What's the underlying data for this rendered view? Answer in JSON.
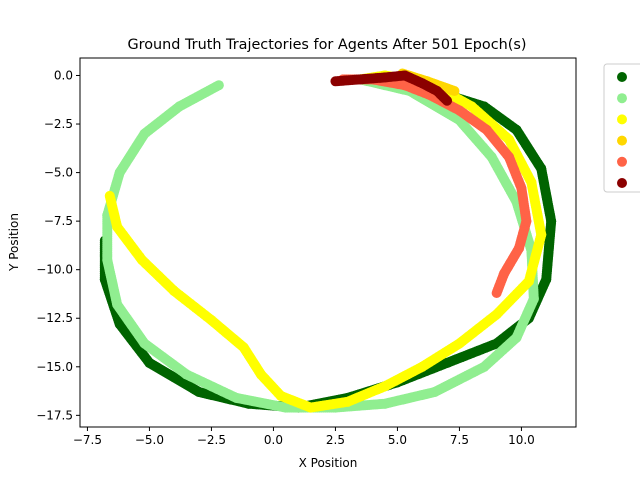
{
  "chart_data": {
    "type": "scatter",
    "title": "Ground Truth Trajectories for Agents After 501 Epoch(s)",
    "xlabel": "X Position",
    "ylabel": "Y Position",
    "xlim": [
      -7.8,
      12.2
    ],
    "ylim": [
      -18.1,
      0.9
    ],
    "xticks": [
      -7.5,
      -5.0,
      -2.5,
      0.0,
      2.5,
      5.0,
      7.5,
      10.0
    ],
    "xtick_labels": [
      "−7.5",
      "−5.0",
      "−2.5",
      "0.0",
      "2.5",
      "5.0",
      "7.5",
      "10.0"
    ],
    "yticks": [
      0.0,
      -2.5,
      -5.0,
      -7.5,
      -10.0,
      -12.5,
      -15.0,
      -17.5
    ],
    "ytick_labels": [
      "0.0",
      "−2.5",
      "−5.0",
      "−7.5",
      "−10.0",
      "−12.5",
      "−15.0",
      "−17.5"
    ],
    "grid": false,
    "legend_position": "outside-right",
    "series": [
      {
        "color": "#006400",
        "points": [
          [
            7.0,
            -1.0
          ],
          [
            8.5,
            -1.6
          ],
          [
            9.8,
            -2.8
          ],
          [
            10.8,
            -4.8
          ],
          [
            11.2,
            -7.5
          ],
          [
            11.0,
            -10.5
          ],
          [
            10.3,
            -12.5
          ],
          [
            9.0,
            -13.8
          ],
          [
            7.0,
            -14.8
          ],
          [
            5.0,
            -15.8
          ],
          [
            3.0,
            -16.6
          ],
          [
            1.0,
            -17.1
          ],
          [
            -1.0,
            -16.9
          ],
          [
            -3.0,
            -16.3
          ],
          [
            -5.0,
            -14.8
          ],
          [
            -6.2,
            -12.8
          ],
          [
            -6.8,
            -10.5
          ],
          [
            -6.8,
            -8.5
          ]
        ]
      },
      {
        "color": "#90EE90",
        "points": [
          [
            -2.2,
            -0.5
          ],
          [
            -3.8,
            -1.6
          ],
          [
            -5.2,
            -3.0
          ],
          [
            -6.2,
            -5.0
          ],
          [
            -6.7,
            -7.2
          ],
          [
            -6.7,
            -9.5
          ],
          [
            -6.3,
            -11.8
          ],
          [
            -5.2,
            -13.8
          ],
          [
            -3.5,
            -15.4
          ],
          [
            -1.5,
            -16.6
          ],
          [
            0.5,
            -17.1
          ],
          [
            2.5,
            -17.1
          ],
          [
            4.5,
            -16.9
          ],
          [
            6.5,
            -16.3
          ],
          [
            8.5,
            -15.0
          ],
          [
            9.8,
            -13.5
          ],
          [
            10.5,
            -11.5
          ],
          [
            10.4,
            -9.0
          ],
          [
            9.8,
            -6.5
          ],
          [
            8.8,
            -4.2
          ],
          [
            7.5,
            -2.3
          ],
          [
            5.5,
            -0.8
          ],
          [
            3.5,
            -0.2
          ]
        ]
      },
      {
        "color": "#FFFF00",
        "points": [
          [
            -6.6,
            -6.2
          ],
          [
            -6.3,
            -7.8
          ],
          [
            -5.3,
            -9.5
          ],
          [
            -4.0,
            -11.1
          ],
          [
            -2.5,
            -12.6
          ],
          [
            -1.2,
            -14.0
          ],
          [
            -0.5,
            -15.4
          ],
          [
            0.3,
            -16.5
          ],
          [
            1.5,
            -17.1
          ],
          [
            3.0,
            -16.8
          ],
          [
            4.5,
            -16.0
          ],
          [
            6.0,
            -15.0
          ],
          [
            7.5,
            -13.8
          ],
          [
            9.0,
            -12.3
          ],
          [
            10.3,
            -10.6
          ],
          [
            10.8,
            -8.2
          ],
          [
            10.4,
            -5.5
          ],
          [
            9.5,
            -3.3
          ],
          [
            8.0,
            -1.6
          ],
          [
            6.3,
            -0.4
          ],
          [
            4.5,
            0.0
          ],
          [
            3.5,
            -0.2
          ]
        ]
      },
      {
        "color": "#FFD700",
        "points": [
          [
            5.2,
            0.1
          ],
          [
            6.2,
            -0.3
          ],
          [
            7.3,
            -0.8
          ]
        ]
      },
      {
        "color": "#FF6347",
        "points": [
          [
            2.8,
            -0.2
          ],
          [
            4.0,
            -0.2
          ],
          [
            5.3,
            -0.5
          ],
          [
            6.3,
            -1.0
          ],
          [
            7.5,
            -1.8
          ],
          [
            8.6,
            -2.8
          ],
          [
            9.5,
            -4.2
          ],
          [
            10.0,
            -5.8
          ],
          [
            10.2,
            -7.5
          ],
          [
            9.9,
            -8.9
          ],
          [
            9.3,
            -10.2
          ],
          [
            9.0,
            -11.2
          ]
        ]
      },
      {
        "color": "#8B0000",
        "points": [
          [
            2.5,
            -0.3
          ],
          [
            3.5,
            -0.2
          ],
          [
            4.5,
            -0.1
          ],
          [
            5.3,
            0.0
          ],
          [
            6.0,
            -0.4
          ],
          [
            6.6,
            -0.8
          ],
          [
            7.0,
            -1.3
          ]
        ]
      }
    ]
  }
}
